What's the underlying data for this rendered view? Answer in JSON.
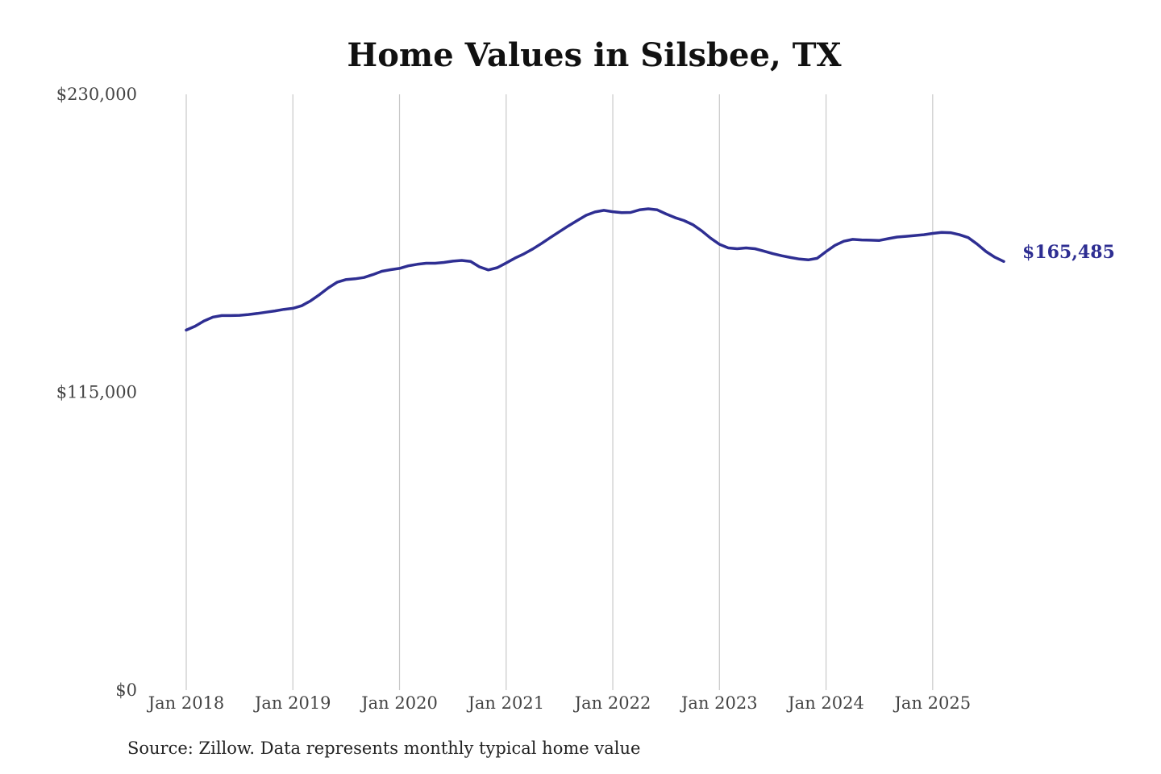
{
  "chart_data": {
    "type": "line",
    "title": "Home Values in Silsbee, TX",
    "subtitle": "",
    "xlabel": "",
    "ylabel": "",
    "ylim": [
      0,
      230000
    ],
    "yticks": [
      0,
      115000,
      230000
    ],
    "ytick_labels": [
      "$0",
      "$115,000",
      "$230,000"
    ],
    "xtick_labels": [
      "Jan 2018",
      "Jan 2019",
      "Jan 2020",
      "Jan 2021",
      "Jan 2022",
      "Jan 2023",
      "Jan 2024",
      "Jan 2025"
    ],
    "x_range": [
      "2018-01",
      "2025-09"
    ],
    "grid": "vertical lines at January of each year",
    "legend": "none",
    "end_label": "$165,485",
    "colors": {
      "series": "#2e2e92",
      "grid": "#c9c9c9"
    },
    "series": [
      {
        "x": [
          "2018-01",
          "2018-02",
          "2018-03",
          "2018-04",
          "2018-05",
          "2018-06",
          "2018-07",
          "2018-08",
          "2018-09",
          "2018-10",
          "2018-11",
          "2018-12",
          "2019-01",
          "2019-02",
          "2019-03",
          "2019-04",
          "2019-05",
          "2019-06",
          "2019-07",
          "2019-08",
          "2019-09",
          "2019-10",
          "2019-11",
          "2019-12",
          "2020-01",
          "2020-02",
          "2020-03",
          "2020-04",
          "2020-05",
          "2020-06",
          "2020-07",
          "2020-08",
          "2020-09",
          "2020-10",
          "2020-11",
          "2020-12",
          "2021-01",
          "2021-02",
          "2021-03",
          "2021-04",
          "2021-05",
          "2021-06",
          "2021-07",
          "2021-08",
          "2021-09",
          "2021-10",
          "2021-11",
          "2021-12",
          "2022-01",
          "2022-02",
          "2022-03",
          "2022-04",
          "2022-05",
          "2022-06",
          "2022-07",
          "2022-08",
          "2022-09",
          "2022-10",
          "2022-11",
          "2022-12",
          "2023-01",
          "2023-02",
          "2023-03",
          "2023-04",
          "2023-05",
          "2023-06",
          "2023-07",
          "2023-08",
          "2023-09",
          "2023-10",
          "2023-11",
          "2023-12",
          "2024-01",
          "2024-02",
          "2024-03",
          "2024-04",
          "2024-05",
          "2024-06",
          "2024-07",
          "2024-08",
          "2024-09",
          "2024-10",
          "2024-11",
          "2024-12",
          "2025-01",
          "2025-02",
          "2025-03",
          "2025-04",
          "2025-05",
          "2025-06",
          "2025-07",
          "2025-08",
          "2025-09"
        ],
        "values": [
          139000,
          140500,
          142500,
          144000,
          144600,
          144600,
          144700,
          145000,
          145400,
          145900,
          146400,
          147000,
          147400,
          148400,
          150300,
          152700,
          155300,
          157500,
          158500,
          158800,
          159300,
          160400,
          161700,
          162300,
          162800,
          163800,
          164400,
          164800,
          164800,
          165100,
          165600,
          165900,
          165500,
          163400,
          162200,
          163100,
          164900,
          166800,
          168400,
          170300,
          172500,
          174800,
          177000,
          179200,
          181300,
          183300,
          184600,
          185200,
          184700,
          184300,
          184400,
          185400,
          185800,
          185400,
          183800,
          182400,
          181300,
          179700,
          177300,
          174500,
          172100,
          170700,
          170400,
          170700,
          170400,
          169500,
          168500,
          167700,
          167000,
          166400,
          166100,
          166700,
          169300,
          171700,
          173300,
          174000,
          173800,
          173700,
          173600,
          174300,
          174900,
          175200,
          175500,
          175800,
          176300,
          176700,
          176600,
          175800,
          174700,
          172200,
          169300,
          167100,
          165485
        ]
      }
    ]
  },
  "footer": {
    "source": "Source: Zillow. Data represents monthly typical home value"
  }
}
